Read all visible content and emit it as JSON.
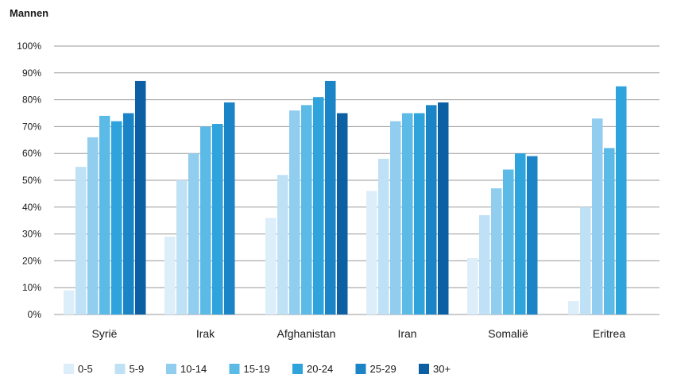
{
  "chart_data": {
    "type": "bar",
    "title": "Mannen",
    "xlabel": "",
    "ylabel": "",
    "ylim": [
      0,
      100
    ],
    "yticks": [
      "0%",
      "10%",
      "20%",
      "30%",
      "40%",
      "50%",
      "60%",
      "70%",
      "80%",
      "90%",
      "100%"
    ],
    "grid": true,
    "legend_position": "bottom",
    "categories": [
      "Syrië",
      "Irak",
      "Afghanistan",
      "Iran",
      "Somalië",
      "Eritrea"
    ],
    "series": [
      {
        "name": "0-5",
        "color": "#dceefa",
        "values": [
          9,
          29,
          36,
          46,
          21,
          5
        ]
      },
      {
        "name": "5-9",
        "color": "#bfe1f5",
        "values": [
          55,
          50,
          52,
          58,
          37,
          40
        ]
      },
      {
        "name": "10-14",
        "color": "#90cdee",
        "values": [
          66,
          60,
          76,
          72,
          47,
          73
        ]
      },
      {
        "name": "15-19",
        "color": "#5bbae6",
        "values": [
          74,
          70,
          78,
          75,
          54,
          62
        ]
      },
      {
        "name": "20-24",
        "color": "#2ea3dc",
        "values": [
          72,
          71,
          81,
          75,
          60,
          85
        ]
      },
      {
        "name": "25-29",
        "color": "#1a84c6",
        "values": [
          75,
          79,
          87,
          78,
          59,
          null
        ]
      },
      {
        "name": "30+",
        "color": "#0d5fa3",
        "values": [
          87,
          null,
          75,
          79,
          null,
          null
        ]
      }
    ]
  }
}
